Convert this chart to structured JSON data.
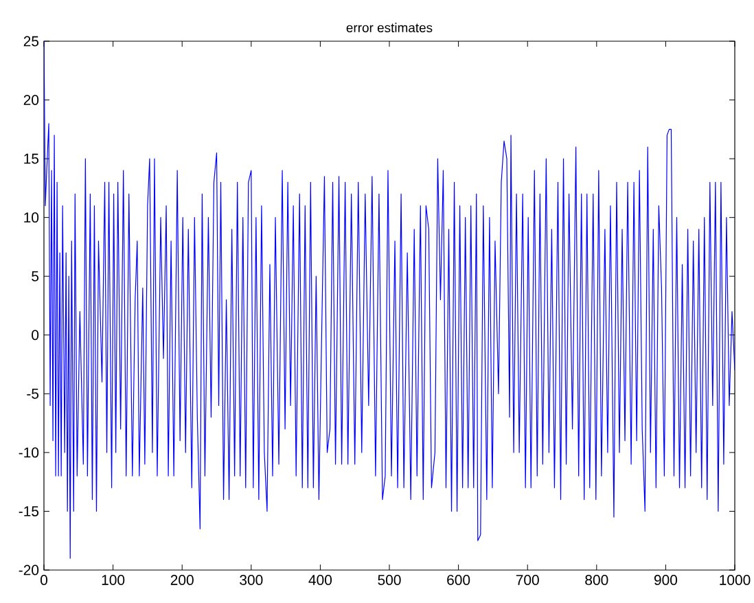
{
  "chart_data": {
    "type": "line",
    "title": "error estimates",
    "xlim": [
      0,
      1000
    ],
    "xticks": [
      0,
      100,
      200,
      300,
      400,
      500,
      600,
      700,
      800,
      900,
      1000
    ],
    "ylim": [
      -20,
      25
    ],
    "yticks": [
      -20,
      -15,
      -10,
      -5,
      0,
      5,
      10,
      15,
      20,
      25
    ],
    "series": [
      {
        "color": "#0000ff",
        "x": [
          0,
          2,
          4,
          7,
          9,
          11,
          13,
          15,
          17,
          19,
          21,
          23,
          25,
          27,
          30,
          32,
          34,
          36,
          38,
          40,
          43,
          45,
          48,
          52,
          57,
          60,
          63,
          67,
          70,
          73,
          76,
          79,
          84,
          88,
          91,
          94,
          98,
          101,
          104,
          107,
          111,
          115,
          119,
          123,
          128,
          132,
          135,
          138,
          143,
          146,
          150,
          153,
          157,
          160,
          164,
          169,
          173,
          177,
          180,
          184,
          188,
          193,
          197,
          201,
          205,
          209,
          214,
          218,
          222,
          226,
          229,
          233,
          238,
          242,
          246,
          250,
          253,
          256,
          260,
          264,
          268,
          272,
          276,
          280,
          284,
          288,
          292,
          296,
          300,
          303,
          307,
          311,
          315,
          319,
          323,
          327,
          331,
          335,
          340,
          345,
          349,
          353,
          357,
          361,
          365,
          370,
          374,
          378,
          382,
          386,
          390,
          394,
          398,
          402,
          406,
          410,
          414,
          418,
          422,
          427,
          431,
          436,
          440,
          445,
          450,
          455,
          460,
          465,
          470,
          475,
          480,
          485,
          490,
          494,
          498,
          503,
          508,
          512,
          517,
          521,
          526,
          531,
          536,
          540,
          545,
          549,
          553,
          557,
          561,
          566,
          570,
          574,
          578,
          582,
          586,
          590,
          594,
          598,
          602,
          606,
          610,
          614,
          618,
          622,
          626,
          628,
          632,
          636,
          641,
          645,
          649,
          653,
          658,
          662,
          666,
          670,
          674,
          676,
          680,
          684,
          688,
          693,
          697,
          701,
          705,
          710,
          714,
          718,
          722,
          727,
          731,
          735,
          739,
          744,
          748,
          752,
          756,
          760,
          765,
          770,
          774,
          778,
          782,
          786,
          790,
          795,
          799,
          803,
          807,
          812,
          816,
          820,
          825,
          829,
          833,
          837,
          841,
          845,
          850,
          854,
          858,
          862,
          866,
          870,
          874,
          878,
          882,
          886,
          890,
          894,
          898,
          902,
          905,
          908,
          912,
          916,
          920,
          924,
          928,
          932,
          936,
          940,
          944,
          948,
          952,
          956,
          960,
          964,
          968,
          972,
          976,
          980,
          984,
          988,
          992,
          996,
          1000
        ],
        "values": [
          25,
          11,
          14,
          18,
          -6,
          14,
          -9,
          17,
          -12,
          13,
          -12,
          7,
          -12,
          11,
          -10,
          7,
          -15,
          5,
          -19,
          8,
          -15,
          12,
          -12,
          2,
          -11,
          15,
          -12,
          12,
          -14,
          11,
          -15,
          8,
          -4,
          13,
          -10,
          13,
          -13,
          12,
          -10,
          13,
          -8,
          14,
          -12,
          12,
          -12,
          3,
          8,
          -12,
          4,
          -11,
          11,
          15,
          -10,
          15,
          -12,
          10,
          -2,
          11,
          -12,
          8,
          -12,
          14,
          -9,
          10,
          -10,
          9,
          -13,
          10,
          -7,
          -16.5,
          12,
          -12,
          10,
          -7,
          13,
          15.5,
          -6,
          13,
          -14,
          3,
          -14,
          9,
          -12,
          13,
          -12,
          10,
          -13,
          13,
          14,
          -13,
          10,
          -14,
          11,
          -10,
          -15,
          6,
          -12,
          10,
          -11,
          14,
          -8,
          13,
          -6,
          11,
          -12,
          12,
          -13,
          11,
          -13,
          13,
          -13,
          5,
          -14,
          0,
          13.5,
          -10,
          -8,
          13,
          -11,
          13.5,
          -11,
          13,
          -11,
          12,
          -11,
          13,
          -10,
          12,
          -6,
          13.5,
          -12,
          12,
          -14,
          -12,
          14,
          -12,
          8,
          -13,
          12,
          -13,
          7,
          -14,
          9,
          -12,
          11,
          -14,
          11,
          9,
          -13,
          -10,
          15,
          3,
          14,
          -13,
          9,
          -15,
          13,
          -15,
          11,
          -13,
          10,
          -13,
          11,
          -13,
          12,
          -17.5,
          -17,
          11,
          -14,
          10,
          -13,
          8,
          -5,
          13,
          16.5,
          15,
          -7,
          17,
          -10,
          12,
          -10,
          12,
          -13,
          10,
          -13,
          14,
          -12,
          12,
          -11,
          15,
          -10,
          9,
          -13,
          13,
          -14,
          15,
          -11,
          12,
          -8,
          16,
          -12,
          12,
          -14,
          12,
          -13,
          12,
          -14,
          14,
          -12,
          9,
          -10,
          11,
          -15.5,
          13,
          -10,
          9,
          -9,
          13,
          -11,
          13,
          -9,
          14,
          -8,
          -15,
          16,
          -10,
          9,
          -13,
          11,
          4,
          -12,
          17,
          17.5,
          17.5,
          -12,
          10,
          -13,
          6,
          -13,
          9,
          -12,
          8,
          -10,
          9,
          -13,
          10,
          -14,
          13,
          -6,
          13,
          -15,
          13,
          -11,
          10,
          -6,
          2,
          -3
        ]
      }
    ]
  }
}
